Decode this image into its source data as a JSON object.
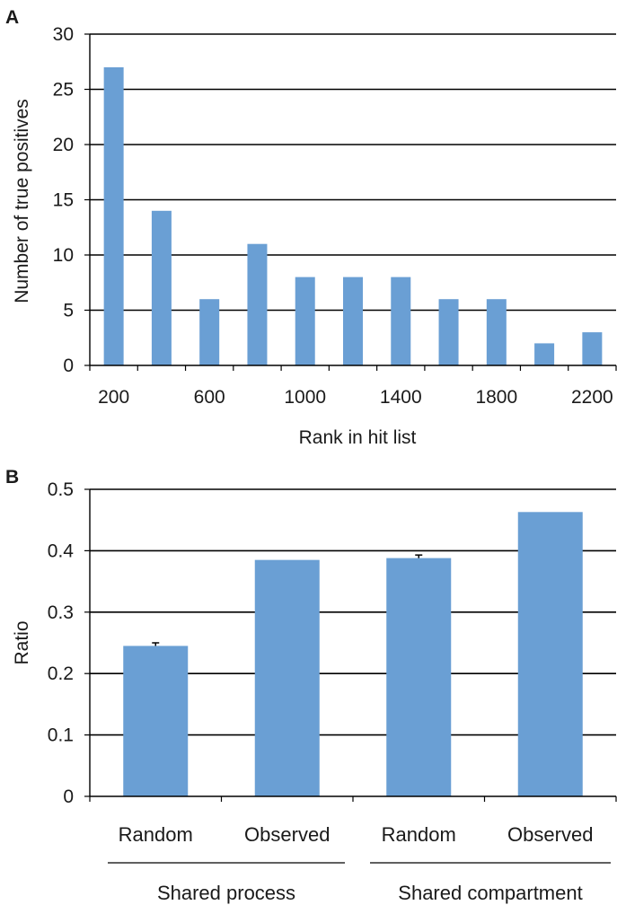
{
  "chart_data": [
    {
      "panel_label": "A",
      "type": "bar",
      "categories": [
        "200",
        "400",
        "600",
        "800",
        "1000",
        "1200",
        "1400",
        "1600",
        "1800",
        "2000",
        "2200"
      ],
      "values": [
        27,
        14,
        6,
        11,
        8,
        8,
        8,
        6,
        6,
        2,
        3
      ],
      "xtick_labels": [
        "200",
        "600",
        "1000",
        "1400",
        "1800",
        "2200"
      ],
      "yticks": [
        "0",
        "5",
        "10",
        "15",
        "20",
        "25",
        "30"
      ],
      "ylim": [
        0,
        30
      ],
      "xlabel": "Rank in hit list",
      "ylabel": "Number of true positives",
      "grid": true,
      "bar_color": "#6a9fd4"
    },
    {
      "panel_label": "B",
      "type": "bar",
      "categories": [
        "Random",
        "Observed",
        "Random",
        "Observed"
      ],
      "values": [
        0.245,
        0.385,
        0.388,
        0.463
      ],
      "errors": [
        0.005,
        0,
        0.005,
        0
      ],
      "groups": [
        "Shared process",
        "Shared compartment"
      ],
      "yticks": [
        "0",
        "0.1",
        "0.2",
        "0.3",
        "0.4",
        "0.5"
      ],
      "ylim": [
        0,
        0.5
      ],
      "ylabel": "Ratio",
      "grid": true,
      "bar_color": "#6a9fd4"
    }
  ]
}
